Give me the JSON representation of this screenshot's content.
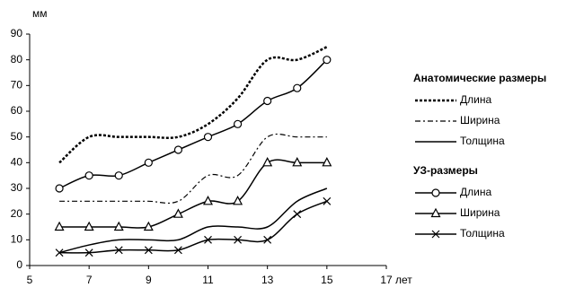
{
  "chart_data": {
    "type": "line",
    "y_unit": "мм",
    "x_unit": "лет",
    "xlim": [
      5,
      17
    ],
    "xticks": [
      5,
      7,
      9,
      11,
      13,
      15,
      17
    ],
    "ylim": [
      0,
      90
    ],
    "yticks": [
      0,
      10,
      20,
      30,
      40,
      50,
      60,
      70,
      80,
      90
    ],
    "x": [
      6,
      7,
      8,
      9,
      10,
      11,
      12,
      13,
      14,
      15
    ],
    "series": [
      {
        "name": "Длина",
        "group": "Анатомические размеры",
        "color": "#000000",
        "dash": "dotted",
        "marker": "none",
        "values": [
          40,
          50,
          50,
          50,
          50,
          55,
          65,
          80,
          80,
          85
        ]
      },
      {
        "name": "Ширина",
        "group": "Анатомические размеры",
        "color": "#000000",
        "dash": "dashdot",
        "marker": "none",
        "values": [
          25,
          25,
          25,
          25,
          25,
          35,
          35,
          50,
          50,
          50
        ]
      },
      {
        "name": "Толщина",
        "group": "Анатомические размеры",
        "color": "#000000",
        "dash": "solid",
        "marker": "none",
        "values": [
          5,
          8,
          10,
          10,
          10,
          15,
          15,
          15,
          25,
          30
        ]
      },
      {
        "name": "Длина",
        "group": "УЗ-размеры",
        "color": "#000000",
        "dash": "solid",
        "marker": "circle",
        "values": [
          30,
          35,
          35,
          40,
          45,
          50,
          55,
          64,
          69,
          80
        ]
      },
      {
        "name": "Ширина",
        "group": "УЗ-размеры",
        "color": "#000000",
        "dash": "solid",
        "marker": "triangle",
        "values": [
          15,
          15,
          15,
          15,
          20,
          25,
          25,
          40,
          40,
          40
        ]
      },
      {
        "name": "Толщина",
        "group": "УЗ-размеры",
        "color": "#000000",
        "dash": "solid",
        "marker": "x",
        "values": [
          5,
          5,
          6,
          6,
          6,
          10,
          10,
          10,
          20,
          25
        ]
      }
    ]
  }
}
